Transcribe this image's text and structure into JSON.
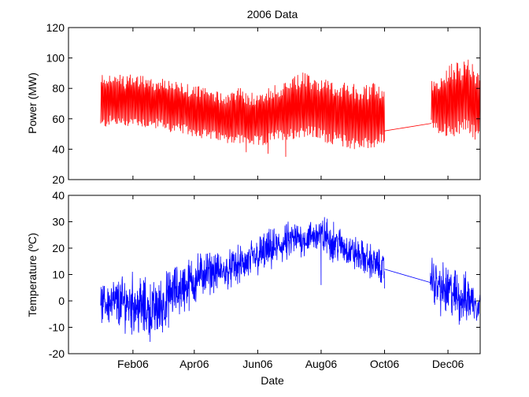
{
  "chart_data": [
    {
      "type": "line",
      "title": "2006 Data",
      "xlabel": "",
      "ylabel": "Power (MW)",
      "ylim": [
        20,
        120
      ],
      "yticks": [
        20,
        40,
        60,
        80,
        100,
        120
      ],
      "xlim": [
        "2005-12-01",
        "2007-01-01"
      ],
      "xticks": [],
      "grid": false,
      "color": "#ff0000",
      "series": [
        {
          "segments": [
            {
              "x": [
                "2006-01-01",
                "2006-01-08",
                "2006-01-15",
                "2006-01-22",
                "2006-01-29",
                "2006-02-05",
                "2006-02-12",
                "2006-02-19",
                "2006-02-26",
                "2006-03-05",
                "2006-03-12",
                "2006-03-19",
                "2006-03-26",
                "2006-04-02",
                "2006-04-09",
                "2006-04-16",
                "2006-04-23",
                "2006-04-30",
                "2006-05-07",
                "2006-05-14",
                "2006-05-21",
                "2006-05-28",
                "2006-06-04",
                "2006-06-11",
                "2006-06-18",
                "2006-06-25",
                "2006-07-02",
                "2006-07-09",
                "2006-07-16",
                "2006-07-23",
                "2006-07-30",
                "2006-08-06",
                "2006-08-13",
                "2006-08-20",
                "2006-08-27",
                "2006-09-03",
                "2006-09-10",
                "2006-09-17",
                "2006-09-24",
                "2006-10-01"
              ],
              "min": [
                52,
                55,
                55,
                54,
                55,
                55,
                54,
                53,
                54,
                52,
                50,
                50,
                49,
                48,
                47,
                46,
                45,
                44,
                44,
                43,
                42,
                42,
                41,
                43,
                45,
                46,
                46,
                47,
                48,
                47,
                46,
                44,
                43,
                42,
                40,
                40,
                39,
                40,
                41,
                43
              ],
              "max": [
                90,
                92,
                91,
                88,
                89,
                90,
                89,
                87,
                86,
                87,
                85,
                84,
                83,
                82,
                81,
                80,
                79,
                78,
                80,
                82,
                78,
                77,
                80,
                81,
                83,
                84,
                86,
                89,
                91,
                88,
                88,
                87,
                86,
                85,
                84,
                83,
                82,
                83,
                84,
                82
              ],
              "low_spikes": [
                [
                  "2006-05-21",
                  38
                ],
                [
                  "2006-06-11",
                  37
                ],
                [
                  "2006-06-28",
                  35
                ]
              ]
            },
            {
              "x": [
                "2006-10-01",
                "2006-11-15"
              ],
              "values": [
                52,
                57
              ]
            },
            {
              "x": [
                "2006-11-15",
                "2006-11-22",
                "2006-11-29",
                "2006-12-06",
                "2006-12-13",
                "2006-12-20",
                "2006-12-27",
                "2007-01-01"
              ],
              "min": [
                55,
                50,
                48,
                47,
                50,
                52,
                46,
                48
              ],
              "max": [
                85,
                88,
                92,
                98,
                96,
                100,
                94,
                90
              ]
            }
          ]
        }
      ]
    },
    {
      "type": "line",
      "title": "",
      "xlabel": "Date",
      "ylabel": "Temperature (ºC)",
      "ylim": [
        -20,
        40
      ],
      "yticks": [
        -20,
        -10,
        0,
        10,
        20,
        30,
        40
      ],
      "xlim": [
        "2005-12-01",
        "2007-01-01"
      ],
      "xticks": [
        "2006-02-01",
        "2006-04-01",
        "2006-06-01",
        "2006-08-01",
        "2006-10-01",
        "2006-12-01"
      ],
      "xticklabels": [
        "Feb06",
        "Apr06",
        "Jun06",
        "Aug06",
        "Oct06",
        "Dec06"
      ],
      "grid": false,
      "color": "#0000ff",
      "series": [
        {
          "segments": [
            {
              "x": [
                "2006-01-01",
                "2006-01-10",
                "2006-01-20",
                "2006-01-30",
                "2006-02-09",
                "2006-02-19",
                "2006-03-01",
                "2006-03-11",
                "2006-03-21",
                "2006-03-31",
                "2006-04-10",
                "2006-04-20",
                "2006-04-30",
                "2006-05-10",
                "2006-05-20",
                "2006-05-30",
                "2006-06-09",
                "2006-06-19",
                "2006-06-29",
                "2006-07-09",
                "2006-07-19",
                "2006-07-29",
                "2006-08-08",
                "2006-08-18",
                "2006-08-28",
                "2006-09-07",
                "2006-09-17",
                "2006-09-27",
                "2006-10-01"
              ],
              "min": [
                -9,
                -10,
                -12,
                -13,
                -15,
                -16,
                -14,
                -8,
                -6,
                -3,
                1,
                3,
                4,
                5,
                6,
                8,
                10,
                12,
                14,
                16,
                17,
                18,
                15,
                14,
                12,
                10,
                8,
                6,
                3
              ],
              "max": [
                6,
                9,
                10,
                12,
                10,
                8,
                10,
                14,
                16,
                18,
                20,
                19,
                18,
                21,
                22,
                25,
                27,
                28,
                30,
                31,
                30,
                33,
                32,
                29,
                26,
                24,
                22,
                20,
                18
              ],
              "low_spikes": [
                [
                  "2006-08-01",
                  6
                ]
              ]
            },
            {
              "x": [
                "2006-10-01",
                "2006-11-14"
              ],
              "values": [
                12,
                7
              ]
            },
            {
              "x": [
                "2006-11-14",
                "2006-11-24",
                "2006-12-04",
                "2006-12-14",
                "2006-12-24",
                "2007-01-01"
              ],
              "min": [
                0,
                -6,
                -8,
                -10,
                -9,
                -10
              ],
              "max": [
                18,
                15,
                14,
                12,
                10,
                6
              ]
            }
          ]
        }
      ]
    }
  ]
}
